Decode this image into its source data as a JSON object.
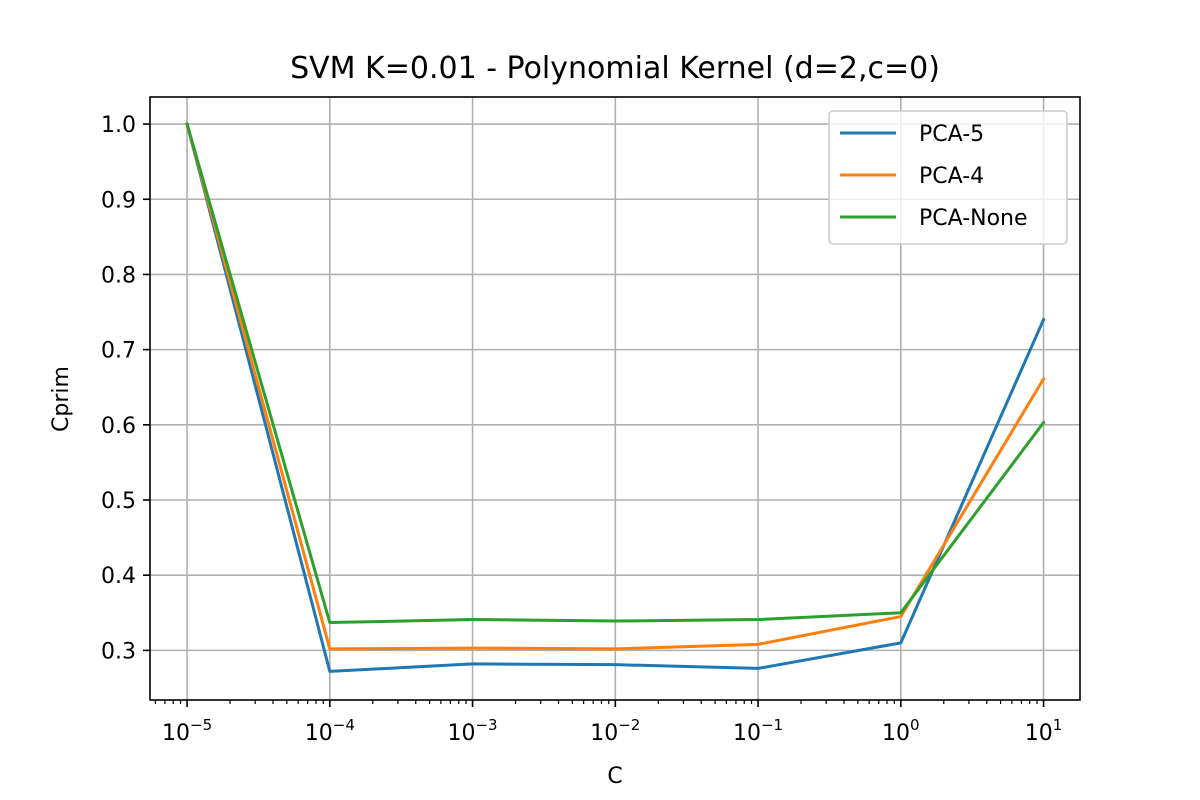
{
  "chart_data": {
    "type": "line",
    "title": "SVM K=0.01 - Polynomial Kernel (d=2,c=0)",
    "xlabel": "C",
    "ylabel": "Cprim",
    "xscale": "log",
    "xlim": [
      5.5e-06,
      18
    ],
    "ylim": [
      0.234,
      1.036
    ],
    "x": [
      1e-05,
      0.0001,
      0.001,
      0.01,
      0.1,
      1,
      10
    ],
    "x_ticks": [
      {
        "base": "10",
        "exp": "−5"
      },
      {
        "base": "10",
        "exp": "−4"
      },
      {
        "base": "10",
        "exp": "−3"
      },
      {
        "base": "10",
        "exp": "−2"
      },
      {
        "base": "10",
        "exp": "−1"
      },
      {
        "base": "10",
        "exp": "0"
      },
      {
        "base": "10",
        "exp": "1"
      }
    ],
    "y_ticks": [
      0.3,
      0.4,
      0.5,
      0.6,
      0.7,
      0.8,
      0.9,
      1.0
    ],
    "y_tick_labels": [
      "0.3",
      "0.4",
      "0.5",
      "0.6",
      "0.7",
      "0.8",
      "0.9",
      "1.0"
    ],
    "grid": true,
    "legend_position": "top-right",
    "series": [
      {
        "name": "PCA-5",
        "color": "#1f77b4",
        "values": [
          1.0,
          0.272,
          0.282,
          0.281,
          0.276,
          0.31,
          0.74
        ]
      },
      {
        "name": "PCA-4",
        "color": "#ff7f0e",
        "values": [
          1.0,
          0.302,
          0.303,
          0.302,
          0.308,
          0.345,
          0.661
        ]
      },
      {
        "name": "PCA-None",
        "color": "#2ca02c",
        "values": [
          1.0,
          0.337,
          0.341,
          0.339,
          0.341,
          0.35,
          0.603
        ]
      }
    ]
  }
}
